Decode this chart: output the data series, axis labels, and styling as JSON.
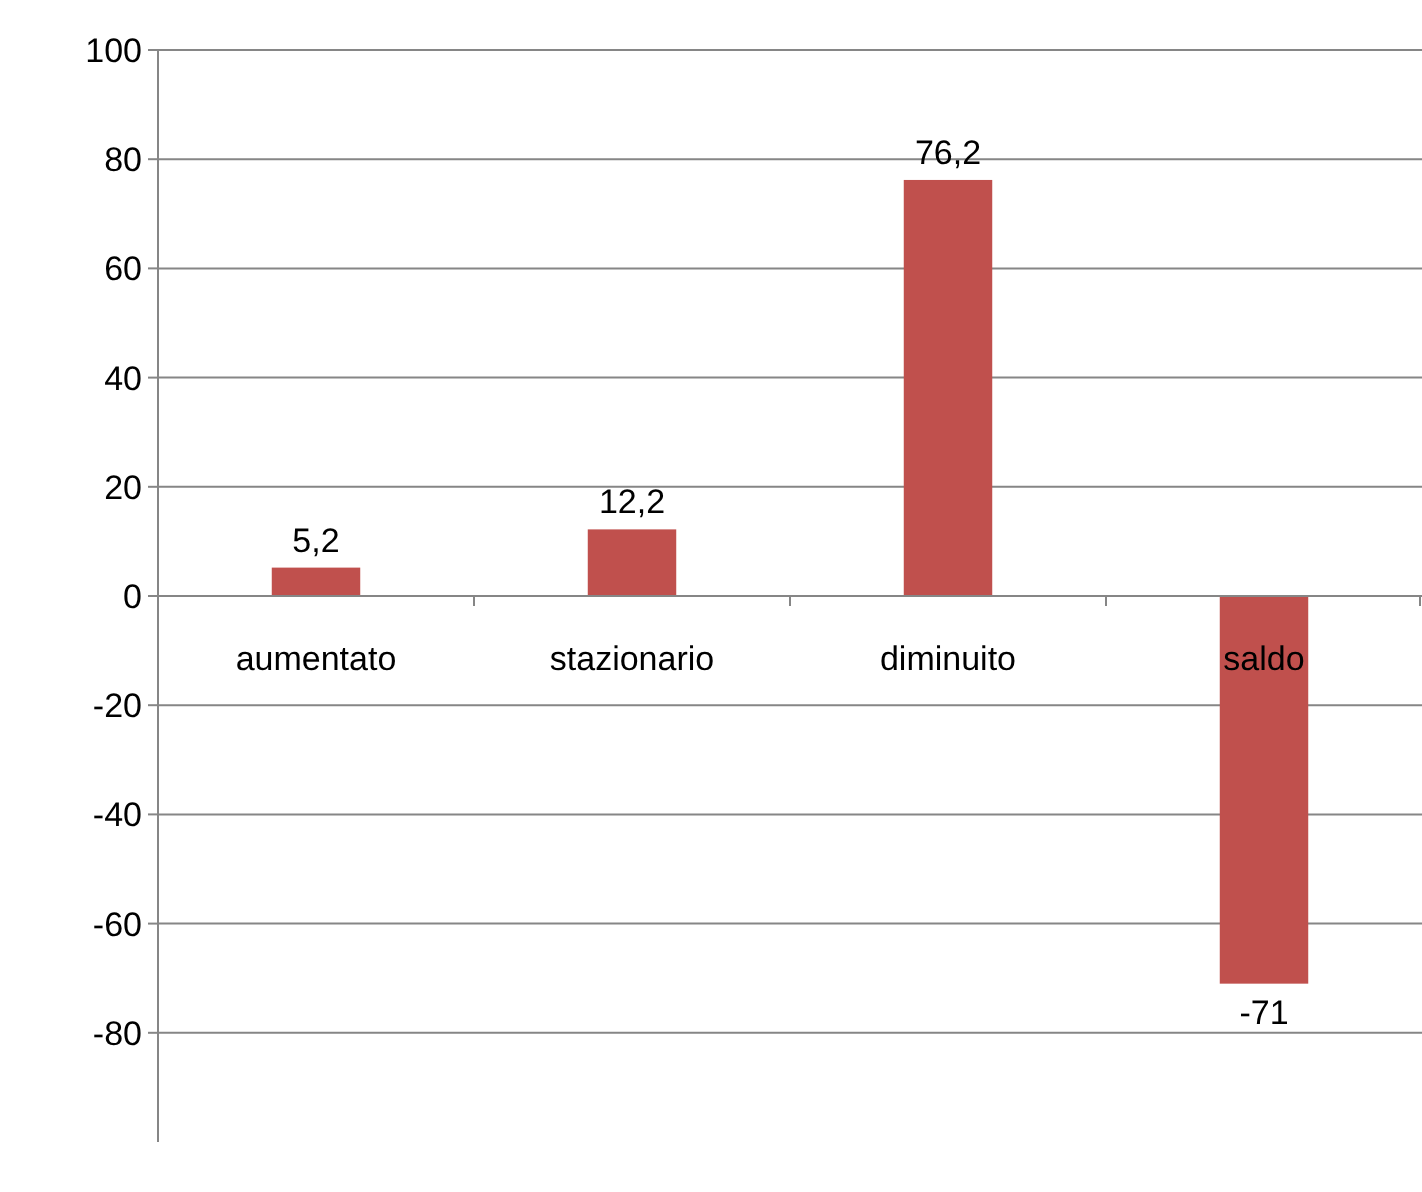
{
  "chart_data": {
    "type": "bar",
    "categories": [
      "aumentato",
      "stazionario",
      "diminuito",
      "saldo"
    ],
    "values": [
      5.2,
      12.2,
      76.2,
      -71
    ],
    "value_labels": [
      "5,2",
      "12,2",
      "76,2",
      "-71"
    ],
    "color": "#c0504d",
    "ylim": [
      -100,
      100
    ],
    "yticks": [
      -80,
      -60,
      -40,
      -20,
      0,
      20,
      40,
      60,
      80,
      100
    ],
    "grid": "y"
  }
}
